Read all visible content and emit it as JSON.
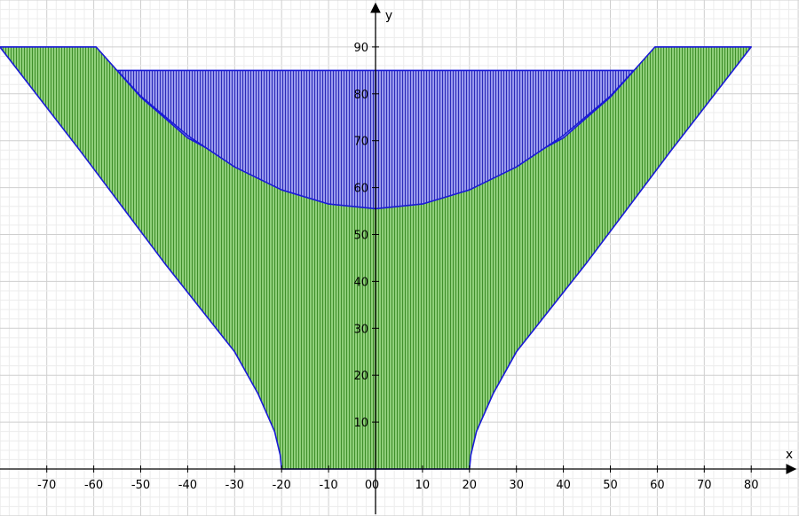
{
  "chart_data": {
    "type": "area",
    "title": "",
    "xlabel": "x",
    "ylabel": "y",
    "xlim": [
      -80,
      90
    ],
    "ylim": [
      -10,
      100
    ],
    "grid": true,
    "legend": "none",
    "x_ticks": [
      -70,
      -60,
      -50,
      -40,
      -30,
      -20,
      -10,
      0,
      10,
      20,
      30,
      40,
      50,
      60,
      70,
      80
    ],
    "y_ticks": [
      10,
      20,
      30,
      40,
      50,
      60,
      70,
      80,
      90
    ],
    "regions": [
      {
        "fill": "#7fbf6a",
        "hatch": "#3f8f2a",
        "outline": "#1a1ad6",
        "polygon": [
          [
            -80,
            90
          ],
          [
            -59.5,
            90
          ],
          [
            -50,
            79.3
          ],
          [
            -40,
            70.6
          ],
          [
            -30,
            65.2
          ],
          [
            -20,
            61.6
          ],
          [
            -10,
            59.4
          ],
          [
            0,
            58.6
          ],
          [
            10,
            59.4
          ],
          [
            20,
            61.6
          ],
          [
            30,
            65.2
          ],
          [
            40,
            70.6
          ],
          [
            50,
            79.3
          ],
          [
            59.5,
            90
          ],
          [
            80,
            90
          ],
          [
            63,
            68
          ],
          [
            45,
            44
          ],
          [
            30,
            25
          ],
          [
            25,
            16
          ],
          [
            21.5,
            8
          ],
          [
            20.3,
            3
          ],
          [
            20,
            0
          ],
          [
            -20,
            0
          ],
          [
            -20.3,
            3
          ],
          [
            -21.5,
            8
          ],
          [
            -25,
            16
          ],
          [
            -30,
            25
          ],
          [
            -45,
            44
          ],
          [
            -63,
            68
          ],
          [
            -80,
            90
          ]
        ]
      },
      {
        "fill": "#8a8ae8",
        "hatch": "#2a2ab8",
        "outline": "#1a1ad6",
        "polygon": [
          [
            -55,
            85
          ],
          [
            55,
            85
          ],
          [
            50,
            79.5
          ],
          [
            40,
            71.1
          ],
          [
            30,
            64.4
          ],
          [
            20,
            59.5
          ],
          [
            10,
            56.5
          ],
          [
            0,
            55.5
          ],
          [
            -10,
            56.5
          ],
          [
            -20,
            59.5
          ],
          [
            -30,
            64.4
          ],
          [
            -40,
            71.1
          ],
          [
            -50,
            79.5
          ],
          [
            -55,
            85
          ]
        ]
      }
    ]
  }
}
